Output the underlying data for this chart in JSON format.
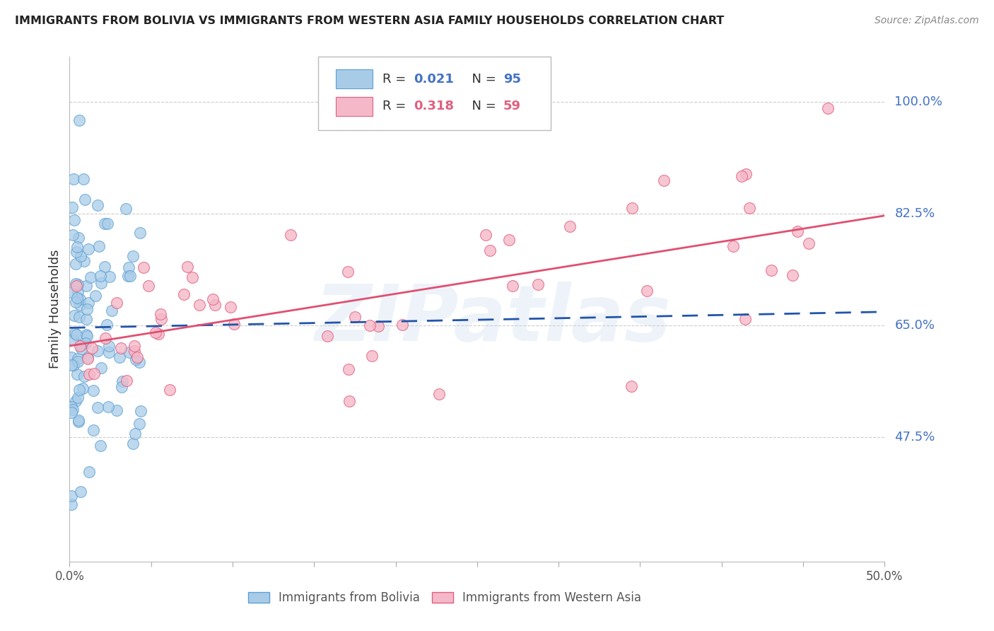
{
  "title": "IMMIGRANTS FROM BOLIVIA VS IMMIGRANTS FROM WESTERN ASIA FAMILY HOUSEHOLDS CORRELATION CHART",
  "source": "Source: ZipAtlas.com",
  "ylabel": "Family Households",
  "y_ticks": [
    0.475,
    0.65,
    0.825,
    1.0
  ],
  "y_tick_labels": [
    "47.5%",
    "65.0%",
    "82.5%",
    "100.0%"
  ],
  "x_min": 0.0,
  "x_max": 0.5,
  "y_min": 0.28,
  "y_max": 1.07,
  "bolivia_color": "#a8cce8",
  "bolivia_edge_color": "#5a9fd4",
  "western_asia_color": "#f5b8c8",
  "western_asia_edge_color": "#e06080",
  "bolivia_line_color": "#2255aa",
  "western_asia_line_color": "#e05070",
  "watermark": "ZIPatlas",
  "watermark_color": "#c8d8f0",
  "legend_r1_color": "#4472C4",
  "legend_r2_color": "#e06080",
  "background_color": "#ffffff",
  "grid_color": "#cccccc",
  "title_color": "#222222",
  "source_color": "#888888",
  "ylabel_color": "#333333",
  "ytick_color": "#4472C4",
  "xtick_color": "#555555"
}
